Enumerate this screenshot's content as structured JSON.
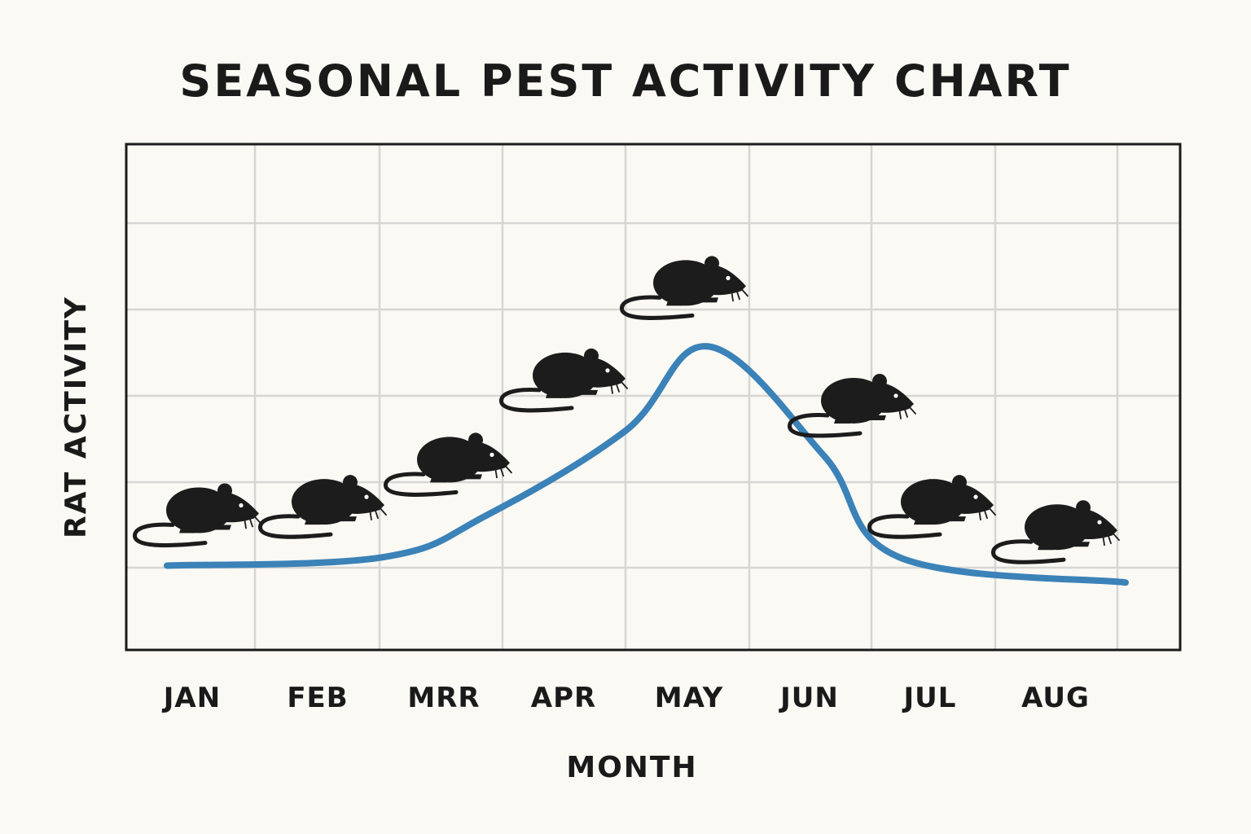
{
  "chart_data": {
    "type": "line",
    "title": "SEASONAL PEST ACTIVITY CHART",
    "xlabel": "MONTH",
    "ylabel": "RAT ACTIVITY",
    "categories": [
      "JAN",
      "FEB",
      "MRR",
      "APR",
      "MAY",
      "JUN",
      "JUL",
      "AUG"
    ],
    "series": [
      {
        "values": [
          1.0,
          1.1,
          1.6,
          2.6,
          3.6,
          2.3,
          1.1,
          0.8
        ],
        "color": "#3b82b8"
      }
    ],
    "ylim": [
      0,
      6
    ],
    "grid": true,
    "marker_icon": "rat-icon",
    "colors": {
      "background": "#faf9f4",
      "grid": "#d6d6d2",
      "frame": "#1a1a1a",
      "line": "#3b82b8",
      "rat": "#1c1c1c"
    }
  }
}
